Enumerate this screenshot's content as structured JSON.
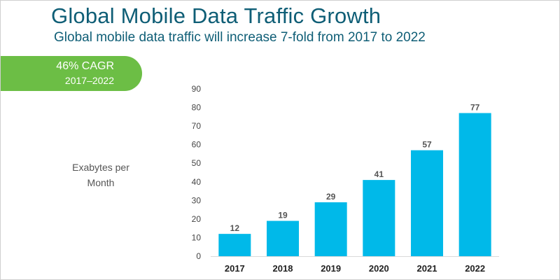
{
  "header": {
    "title": "Global Mobile Data Traffic Growth",
    "subtitle": "Global mobile data traffic will increase 7-fold from 2017 to 2022"
  },
  "badge": {
    "line1": "46% CAGR",
    "line2": "2017–2022",
    "color": "#6cbe45"
  },
  "chart_data": {
    "type": "bar",
    "title": "Global Mobile Data Traffic Growth",
    "xlabel": "",
    "ylabel": "Exabytes per Month",
    "categories": [
      "2017",
      "2018",
      "2019",
      "2020",
      "2021",
      "2022"
    ],
    "values": [
      12,
      19,
      29,
      41,
      57,
      77
    ],
    "data_labels": [
      "12",
      "19",
      "29",
      "41",
      "57",
      "77"
    ],
    "yticks": [
      0,
      10,
      20,
      30,
      40,
      50,
      60,
      70,
      80,
      90
    ],
    "ylim": [
      0,
      90
    ],
    "grid": false,
    "bar_color": "#00b9e9"
  }
}
